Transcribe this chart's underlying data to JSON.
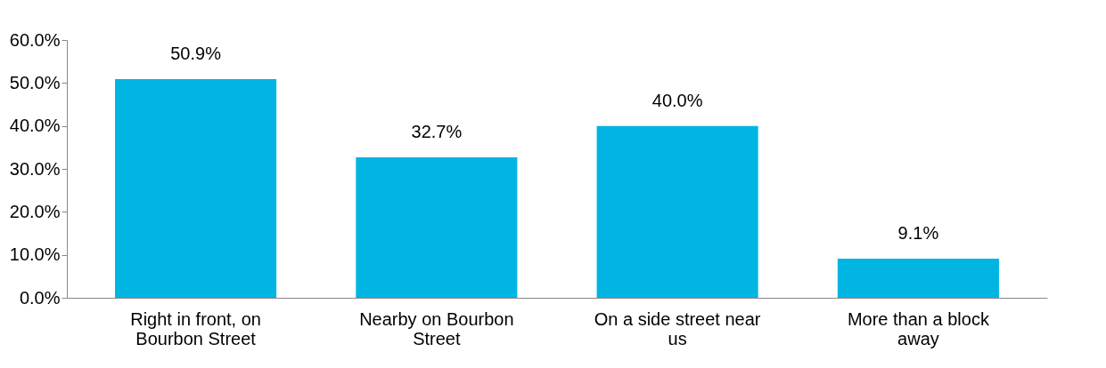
{
  "chart_data": {
    "type": "bar",
    "categories": [
      "Right in front, on Bourbon Street",
      "Nearby on Bourbon Street",
      "On a side street near us",
      "More than a block away"
    ],
    "values": [
      50.9,
      32.7,
      40.0,
      9.1
    ],
    "value_labels": [
      "50.9%",
      "32.7%",
      "40.0%",
      "9.1%"
    ],
    "color": "#00b5e2",
    "ylim": [
      0,
      60
    ],
    "yticks": [
      {
        "value": 0,
        "label": "0.0%"
      },
      {
        "value": 10,
        "label": "10.0%"
      },
      {
        "value": 20,
        "label": "20.0%"
      },
      {
        "value": 30,
        "label": "30.0%"
      },
      {
        "value": 40,
        "label": "40.0%"
      },
      {
        "value": 50,
        "label": "50.0%"
      },
      {
        "value": 60,
        "label": "60.0%"
      }
    ],
    "grid": false
  }
}
